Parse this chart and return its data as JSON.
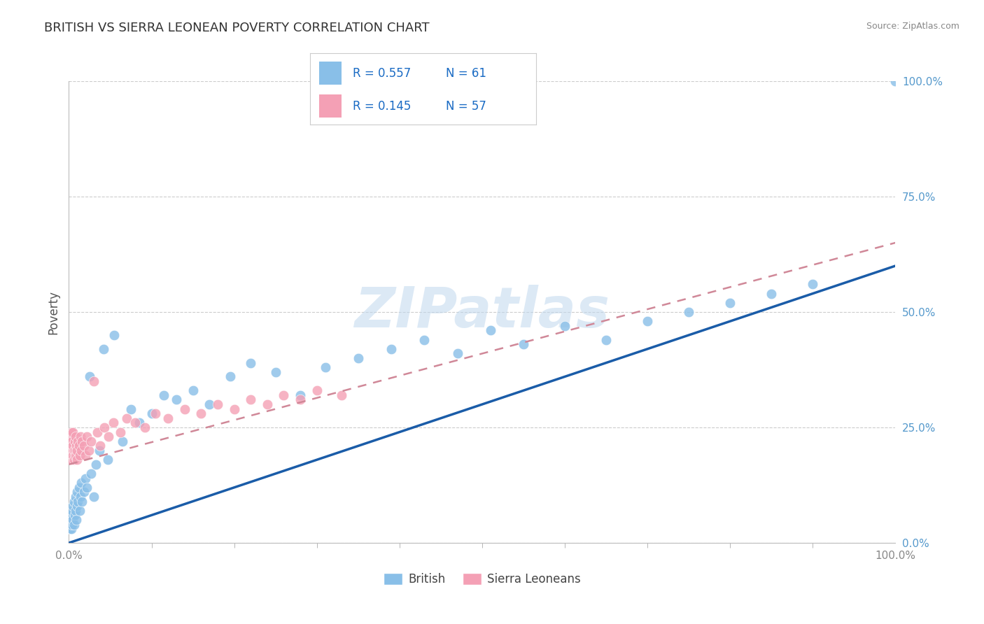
{
  "title": "BRITISH VS SIERRA LEONEAN POVERTY CORRELATION CHART",
  "source": "Source: ZipAtlas.com",
  "ylabel": "Poverty",
  "ytick_labels": [
    "0.0%",
    "25.0%",
    "50.0%",
    "75.0%",
    "100.0%"
  ],
  "ytick_values": [
    0.0,
    0.25,
    0.5,
    0.75,
    1.0
  ],
  "xlim": [
    0,
    1.0
  ],
  "ylim": [
    0,
    1.0
  ],
  "british_R": 0.557,
  "british_N": 61,
  "sierraleonean_R": 0.145,
  "sierraleonean_N": 57,
  "british_color": "#89BFE8",
  "sierraleonean_color": "#F4A0B5",
  "british_line_color": "#1A5CA8",
  "sierraleonean_line_color": "#D08898",
  "grid_color": "#CCCCCC",
  "watermark": "ZIPatlas",
  "watermark_color": "#C0D8EE",
  "title_color": "#333333",
  "legend_r_color": "#1A6BC4",
  "background_color": "#FFFFFF",
  "british_x": [
    0.001,
    0.002,
    0.002,
    0.003,
    0.003,
    0.004,
    0.004,
    0.005,
    0.005,
    0.006,
    0.006,
    0.007,
    0.008,
    0.008,
    0.009,
    0.01,
    0.01,
    0.011,
    0.012,
    0.013,
    0.014,
    0.015,
    0.016,
    0.018,
    0.02,
    0.022,
    0.025,
    0.027,
    0.03,
    0.033,
    0.037,
    0.042,
    0.047,
    0.055,
    0.065,
    0.075,
    0.085,
    0.1,
    0.115,
    0.13,
    0.15,
    0.17,
    0.195,
    0.22,
    0.25,
    0.28,
    0.31,
    0.35,
    0.39,
    0.43,
    0.47,
    0.51,
    0.55,
    0.6,
    0.65,
    0.7,
    0.75,
    0.8,
    0.85,
    0.9,
    1.0
  ],
  "british_y": [
    0.03,
    0.04,
    0.05,
    0.03,
    0.06,
    0.04,
    0.07,
    0.05,
    0.08,
    0.04,
    0.09,
    0.06,
    0.07,
    0.1,
    0.05,
    0.08,
    0.11,
    0.09,
    0.12,
    0.07,
    0.1,
    0.13,
    0.09,
    0.11,
    0.14,
    0.12,
    0.36,
    0.15,
    0.1,
    0.17,
    0.2,
    0.42,
    0.18,
    0.45,
    0.22,
    0.29,
    0.26,
    0.28,
    0.32,
    0.31,
    0.33,
    0.3,
    0.36,
    0.39,
    0.37,
    0.32,
    0.38,
    0.4,
    0.42,
    0.44,
    0.41,
    0.46,
    0.43,
    0.47,
    0.44,
    0.48,
    0.5,
    0.52,
    0.54,
    0.56,
    1.0
  ],
  "sl_x": [
    0.001,
    0.001,
    0.002,
    0.002,
    0.002,
    0.003,
    0.003,
    0.003,
    0.004,
    0.004,
    0.004,
    0.005,
    0.005,
    0.005,
    0.006,
    0.006,
    0.007,
    0.007,
    0.008,
    0.008,
    0.009,
    0.009,
    0.01,
    0.01,
    0.011,
    0.012,
    0.013,
    0.014,
    0.015,
    0.016,
    0.018,
    0.02,
    0.022,
    0.024,
    0.027,
    0.03,
    0.034,
    0.038,
    0.043,
    0.048,
    0.054,
    0.062,
    0.07,
    0.08,
    0.092,
    0.105,
    0.12,
    0.14,
    0.16,
    0.18,
    0.2,
    0.22,
    0.24,
    0.26,
    0.28,
    0.3,
    0.33
  ],
  "sl_y": [
    0.19,
    0.22,
    0.18,
    0.2,
    0.23,
    0.19,
    0.21,
    0.24,
    0.18,
    0.2,
    0.22,
    0.19,
    0.21,
    0.24,
    0.18,
    0.2,
    0.19,
    0.22,
    0.2,
    0.23,
    0.19,
    0.21,
    0.18,
    0.2,
    0.22,
    0.21,
    0.19,
    0.23,
    0.2,
    0.22,
    0.21,
    0.19,
    0.23,
    0.2,
    0.22,
    0.35,
    0.24,
    0.21,
    0.25,
    0.23,
    0.26,
    0.24,
    0.27,
    0.26,
    0.25,
    0.28,
    0.27,
    0.29,
    0.28,
    0.3,
    0.29,
    0.31,
    0.3,
    0.32,
    0.31,
    0.33,
    0.32
  ],
  "british_line_x0": 0.0,
  "british_line_y0": 0.0,
  "british_line_x1": 1.0,
  "british_line_y1": 0.6,
  "sl_line_x0": 0.0,
  "sl_line_y0": 0.17,
  "sl_line_x1": 1.0,
  "sl_line_y1": 0.65
}
